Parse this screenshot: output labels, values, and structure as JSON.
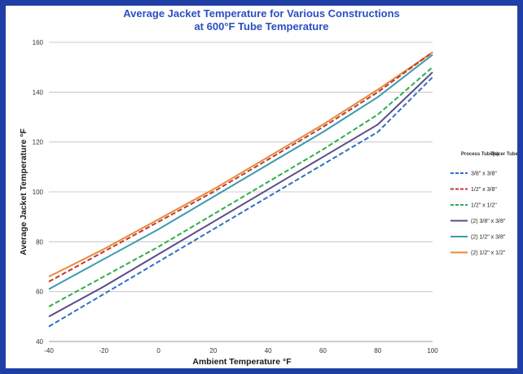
{
  "chart_data": {
    "type": "line",
    "title_lines": [
      "Average Jacket Temperature for Various Constructions",
      "at 600°F Tube Temperature"
    ],
    "xlabel": "Ambient Temperature  °F",
    "ylabel": "Average Jacket Temperature  °F",
    "xlim": [
      -40,
      100
    ],
    "ylim": [
      40,
      160
    ],
    "xticks": [
      "-40",
      "-20",
      "0",
      "20",
      "40",
      "60",
      "80",
      "100"
    ],
    "yticks": [
      "40",
      "60",
      "80",
      "100",
      "120",
      "140",
      "160"
    ],
    "x": [
      -40,
      -20,
      0,
      20,
      40,
      60,
      80,
      100
    ],
    "grid": "horizontal",
    "legend_position": "right",
    "legend_headers": [
      "Process Tube(s)",
      "Tracer Tube"
    ],
    "series": [
      {
        "name": "3/8\" x 3/8\"",
        "color": "#2f6fc4",
        "dash": true,
        "values": [
          46,
          59,
          72,
          85,
          98,
          111,
          124,
          146
        ]
      },
      {
        "name": "1/2\" x 3/8\"",
        "color": "#c0392b",
        "dash": true,
        "values": [
          64,
          76,
          88,
          100,
          113,
          126,
          140,
          156
        ]
      },
      {
        "name": "1/2\" x 1/2\"",
        "color": "#2fae4a",
        "dash": true,
        "values": [
          54,
          66,
          78,
          91,
          104,
          117,
          131,
          150
        ]
      },
      {
        "name": "(2) 3/8\" x 3/8\"",
        "color": "#5b4a8b",
        "dash": false,
        "values": [
          50,
          62,
          75,
          88,
          101,
          114,
          127,
          148
        ]
      },
      {
        "name": "(2) 1/2\" x 3/8\"",
        "color": "#3b9ab0",
        "dash": false,
        "values": [
          61,
          73,
          85,
          98,
          111,
          124,
          138,
          155
        ]
      },
      {
        "name": "(2) 1/2\" x 1/2\"",
        "color": "#e9883a",
        "dash": false,
        "values": [
          66,
          77,
          89,
          101,
          114,
          127,
          141,
          156
        ]
      }
    ]
  }
}
